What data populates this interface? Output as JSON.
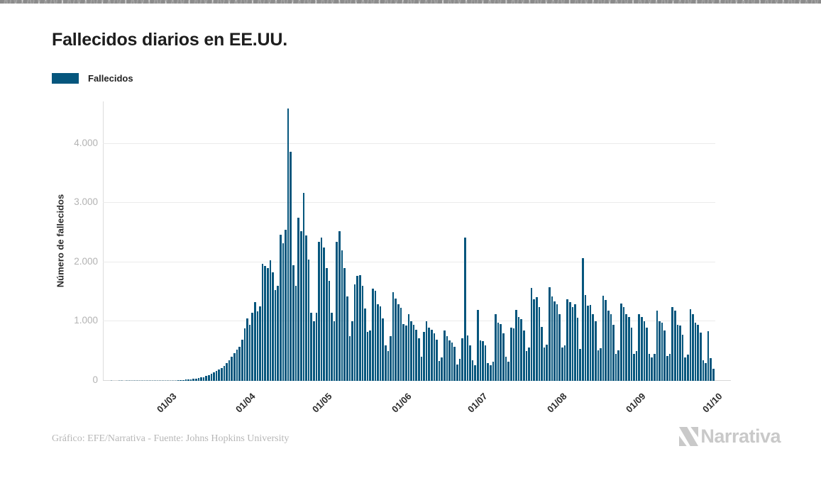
{
  "page": {
    "background": "#ffffff"
  },
  "header": {
    "title": "Fallecidos diarios en EE.UU."
  },
  "legend": {
    "items": [
      {
        "label": "Fallecidos",
        "color": "#05567d"
      }
    ]
  },
  "footer": {
    "credit": "Gráfico: EFE/Narrativa - Fuente: Johns Hopkins University"
  },
  "branding": {
    "logo_text": "Narrativa",
    "logo_color": "#c9c9c9"
  },
  "chart_data": {
    "type": "bar",
    "title": "Fallecidos diarios en EE.UU.",
    "series_name": "Fallecidos",
    "bar_color": "#05567d",
    "xlabel": "",
    "ylabel": "Número de fallecidos",
    "grid": true,
    "legend_position": "top-left",
    "ylim": [
      0,
      4690
    ],
    "y_ticks": [
      {
        "value": 0,
        "label": "0"
      },
      {
        "value": 1000,
        "label": "1.000"
      },
      {
        "value": 2000,
        "label": "2.000"
      },
      {
        "value": 3000,
        "label": "3.000"
      },
      {
        "value": 4000,
        "label": "4.000"
      }
    ],
    "x_start": "2020-02-05",
    "x_end": "2020-09-30",
    "frequency": "daily",
    "slots": 240,
    "x_ticks": [
      {
        "index": 25,
        "label": "01/03"
      },
      {
        "index": 56,
        "label": "01/04"
      },
      {
        "index": 86,
        "label": "01/05"
      },
      {
        "index": 117,
        "label": "01/06"
      },
      {
        "index": 147,
        "label": "01/07"
      },
      {
        "index": 178,
        "label": "01/08"
      },
      {
        "index": 209,
        "label": "01/09"
      },
      {
        "index": 239,
        "label": "01/10"
      }
    ],
    "values": [
      0,
      0,
      0,
      1,
      0,
      0,
      1,
      1,
      0,
      1,
      1,
      2,
      1,
      1,
      2,
      2,
      1,
      2,
      3,
      2,
      3,
      4,
      5,
      6,
      5,
      5,
      6,
      7,
      9,
      11,
      13,
      16,
      20,
      24,
      28,
      33,
      40,
      48,
      56,
      65,
      78,
      95,
      115,
      140,
      165,
      190,
      220,
      255,
      300,
      350,
      410,
      470,
      530,
      570,
      690,
      880,
      1050,
      950,
      1150,
      1330,
      1170,
      1255,
      1970,
      1940,
      1900,
      2035,
      1830,
      1530,
      1600,
      2470,
      2320,
      2550,
      4600,
      3860,
      1950,
      1600,
      2750,
      2520,
      3170,
      2450,
      2050,
      1150,
      1000,
      1150,
      2350,
      2420,
      2250,
      1900,
      1690,
      1150,
      1000,
      2350,
      2530,
      2200,
      1900,
      1420,
      750,
      1000,
      1630,
      1770,
      1780,
      1600,
      1220,
      820,
      850,
      1550,
      1520,
      1290,
      1260,
      1050,
      600,
      500,
      750,
      1500,
      1390,
      1290,
      1230,
      960,
      930,
      1130,
      1000,
      945,
      860,
      720,
      405,
      825,
      1000,
      900,
      860,
      800,
      700,
      330,
      400,
      850,
      750,
      680,
      650,
      580,
      270,
      370,
      720,
      2420,
      765,
      600,
      350,
      265,
      1200,
      685,
      670,
      600,
      300,
      265,
      325,
      1120,
      980,
      960,
      800,
      405,
      325,
      900,
      885,
      1200,
      1080,
      1040,
      850,
      500,
      560,
      1570,
      1380,
      1410,
      1240,
      910,
      560,
      610,
      1580,
      1420,
      1340,
      1290,
      1130,
      560,
      600,
      1380,
      1330,
      1250,
      1290,
      1060,
      540,
      2070,
      1450,
      1270,
      1280,
      1130,
      1000,
      510,
      550,
      1430,
      1360,
      1180,
      1130,
      950,
      450,
      510,
      1300,
      1250,
      1130,
      1080,
      900,
      450,
      500,
      1130,
      1080,
      1000,
      900,
      450,
      400,
      460,
      1180,
      1000,
      980,
      850,
      420,
      450,
      1240,
      1180,
      950,
      930,
      780,
      400,
      440,
      1210,
      1130,
      980,
      940,
      810,
      350,
      300,
      840,
      380,
      200
    ]
  }
}
